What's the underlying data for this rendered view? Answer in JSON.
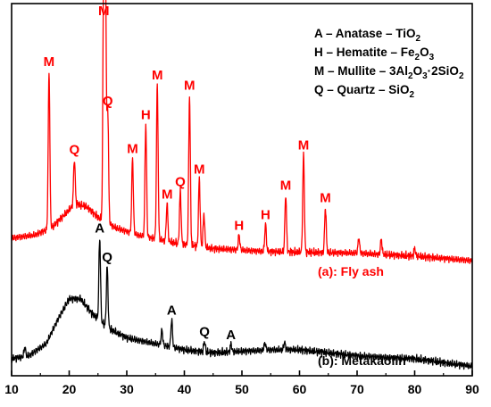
{
  "chart_data": {
    "type": "line",
    "xlim": [
      10,
      90
    ],
    "x_ticks": [
      "10",
      "20",
      "30",
      "40",
      "50",
      "60",
      "70",
      "80",
      "90"
    ],
    "y_ticks_shown": false,
    "grid": false,
    "legend_position": "top-right",
    "phase_legend": [
      {
        "id": "anatase",
        "parts": [
          {
            "t": "A – Anatase – TiO"
          },
          {
            "t": "2",
            "sub": true
          }
        ]
      },
      {
        "id": "hematite",
        "parts": [
          {
            "t": "H –  Hematite – Fe"
          },
          {
            "t": "2",
            "sub": true
          },
          {
            "t": "O"
          },
          {
            "t": "3",
            "sub": true
          }
        ]
      },
      {
        "id": "mullite",
        "parts": [
          {
            "t": "M – Mullite – 3Al"
          },
          {
            "t": "2",
            "sub": true
          },
          {
            "t": "O"
          },
          {
            "t": "3",
            "sub": true
          },
          {
            "t": "·2SiO"
          },
          {
            "t": "2",
            "sub": true
          }
        ]
      },
      {
        "id": "quartz",
        "parts": [
          {
            "t": "Q – Quartz – SiO"
          },
          {
            "t": "2",
            "sub": true
          }
        ]
      }
    ],
    "series": [
      {
        "name": "(a): Fly ash",
        "color": "#ff0000",
        "baseline": [
          [
            10,
            0.15
          ],
          [
            14,
            0.17
          ],
          [
            17,
            0.22
          ],
          [
            19,
            0.3
          ],
          [
            21,
            0.38
          ],
          [
            23,
            0.36
          ],
          [
            25,
            0.29
          ],
          [
            28,
            0.22
          ],
          [
            32,
            0.17
          ],
          [
            38,
            0.12
          ],
          [
            45,
            0.08
          ],
          [
            55,
            0.06
          ],
          [
            70,
            0.05
          ],
          [
            80,
            0.03
          ],
          [
            90,
            0.0
          ]
        ],
        "peaks": [
          {
            "x": 16.5,
            "height": 1.05,
            "label": "M"
          },
          {
            "x": 20.9,
            "height": 0.3,
            "label": "Q"
          },
          {
            "x": 26.0,
            "height": 1.72,
            "label": "M"
          },
          {
            "x": 26.3,
            "height": 1.58,
            "label": ""
          },
          {
            "x": 26.7,
            "height": 0.75,
            "label": "Q"
          },
          {
            "x": 31.0,
            "height": 0.5,
            "label": "M"
          },
          {
            "x": 33.3,
            "height": 0.75,
            "label": "H"
          },
          {
            "x": 35.3,
            "height": 1.03,
            "label": "M"
          },
          {
            "x": 37.0,
            "height": 0.25,
            "label": "M"
          },
          {
            "x": 39.3,
            "height": 0.35,
            "label": "Q"
          },
          {
            "x": 40.9,
            "height": 1.0,
            "label": "M"
          },
          {
            "x": 42.6,
            "height": 0.45,
            "label": "M"
          },
          {
            "x": 43.4,
            "height": 0.22,
            "label": ""
          },
          {
            "x": 49.5,
            "height": 0.1,
            "label": "H"
          },
          {
            "x": 54.1,
            "height": 0.18,
            "label": "H"
          },
          {
            "x": 57.6,
            "height": 0.38,
            "label": "M"
          },
          {
            "x": 60.7,
            "height": 0.65,
            "label": "M"
          },
          {
            "x": 64.5,
            "height": 0.3,
            "label": "M"
          },
          {
            "x": 70.3,
            "height": 0.1,
            "label": ""
          },
          {
            "x": 74.2,
            "height": 0.1,
            "label": ""
          },
          {
            "x": 80.0,
            "height": 0.05,
            "label": ""
          }
        ]
      },
      {
        "name": "(b): Metakaolin",
        "color": "#000000",
        "baseline": [
          [
            10,
            0.0
          ],
          [
            13,
            0.02
          ],
          [
            16,
            0.1
          ],
          [
            18,
            0.26
          ],
          [
            20,
            0.4
          ],
          [
            22,
            0.4
          ],
          [
            24,
            0.3
          ],
          [
            27,
            0.2
          ],
          [
            30,
            0.14
          ],
          [
            35,
            0.1
          ],
          [
            40,
            0.06
          ],
          [
            45,
            0.04
          ],
          [
            50,
            0.05
          ],
          [
            55,
            0.06
          ],
          [
            60,
            0.06
          ],
          [
            65,
            0.04
          ],
          [
            70,
            0.02
          ],
          [
            80,
            0.0
          ],
          [
            90,
            -0.05
          ]
        ],
        "peaks": [
          {
            "x": 12.3,
            "height": 0.06,
            "label": ""
          },
          {
            "x": 25.3,
            "height": 0.55,
            "label": "A"
          },
          {
            "x": 26.6,
            "height": 0.4,
            "label": "Q"
          },
          {
            "x": 36.1,
            "height": 0.1,
            "label": ""
          },
          {
            "x": 37.8,
            "height": 0.18,
            "label": "A"
          },
          {
            "x": 43.5,
            "height": 0.07,
            "label": "Q"
          },
          {
            "x": 48.1,
            "height": 0.05,
            "label": "A"
          },
          {
            "x": 54.0,
            "height": 0.05,
            "label": ""
          },
          {
            "x": 57.4,
            "height": 0.05,
            "label": ""
          }
        ]
      }
    ]
  }
}
